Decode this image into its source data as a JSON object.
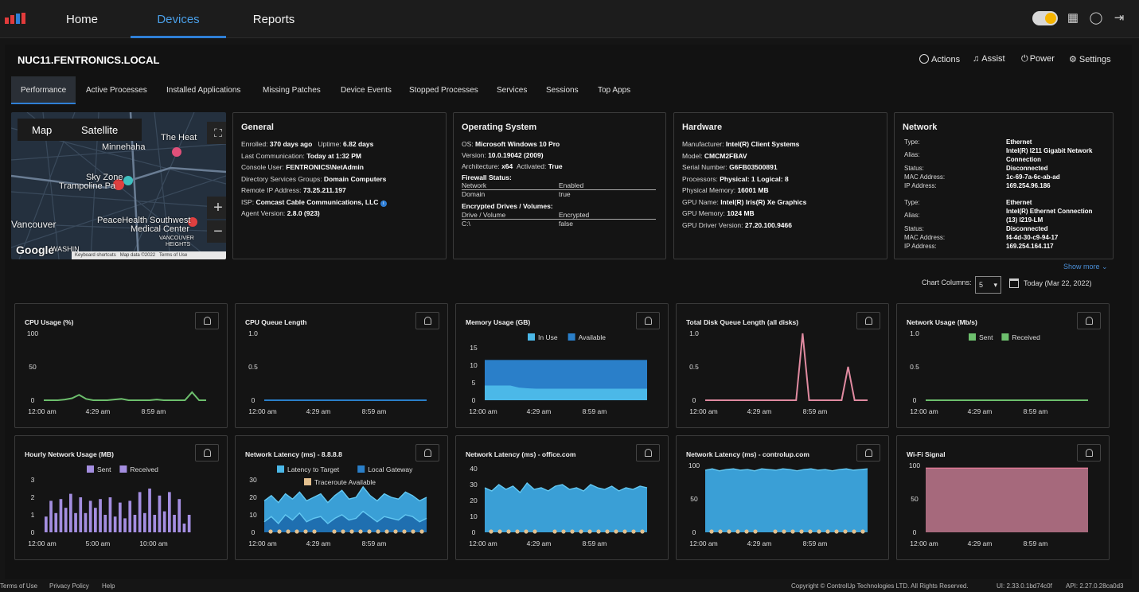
{
  "nav": {
    "home": "Home",
    "devices": "Devices",
    "reports": "Reports"
  },
  "device": {
    "name": "NUC11.FENTRONICS.LOCAL"
  },
  "actions": {
    "actions": "Actions",
    "assist": "Assist",
    "power": "Power",
    "settings": "Settings"
  },
  "tabs": [
    "Performance",
    "Active Processes",
    "Installed Applications",
    "Missing Patches",
    "Device Events",
    "Stopped Processes",
    "Services",
    "Sessions",
    "Top Apps"
  ],
  "map": {
    "map": "Map",
    "satellite": "Satellite",
    "labels": [
      "Minnehaha",
      "The Heat",
      "Sky Zone",
      "Trampoline Pa",
      "Vancouver",
      "PeaceHealth Southwest",
      "Medical Center",
      "VANCOUVER",
      "HEIGHTS",
      "Google",
      "WASHIN"
    ],
    "footer": "Keyboard shortcuts   Map data ©2022   Terms of Use"
  },
  "general": {
    "title": "General",
    "lines": [
      [
        "Enrolled: ",
        "370 days ago",
        "   Uptime: ",
        "6.82 days"
      ],
      [
        "Last Communication: ",
        "Today at 1:32 PM",
        "",
        ""
      ],
      [
        "Console User: ",
        "FENTRONICS\\NetAdmin",
        "",
        ""
      ],
      [
        "Directory Services Groups: ",
        "Domain Computers",
        "",
        ""
      ],
      [
        "Remote IP Address: ",
        "73.25.211.197",
        "",
        ""
      ],
      [
        "ISP: ",
        "Comcast Cable Communications, LLC",
        "",
        ""
      ],
      [
        "Agent Version: ",
        "2.8.0 (923)",
        "",
        ""
      ]
    ]
  },
  "os": {
    "title": "Operating System",
    "os_label": "OS: ",
    "os": "Microsoft Windows 10 Pro",
    "version_label": "Version: ",
    "version": "10.0.19042 (2009)",
    "arch_label": "Architecture: ",
    "arch": "x64",
    "activated_label": "Activated: ",
    "activated": "True",
    "firewall_title": "Firewall Status:",
    "fw_head": [
      "Network",
      "Enabled"
    ],
    "fw_row": [
      "Domain",
      "true"
    ],
    "drives_title": "Encrypted Drives / Volumes:",
    "dr_head": [
      "Drive / Volume",
      "Encrypted"
    ],
    "dr_row": [
      "C:\\",
      "false"
    ]
  },
  "hardware": {
    "title": "Hardware",
    "lines": [
      [
        "Manufacturer: ",
        "Intel(R) Client Systems"
      ],
      [
        "Model: ",
        "CMCM2FBAV"
      ],
      [
        "Serial Number: ",
        "G6FB03500891"
      ],
      [
        "Processors: ",
        "Physical: 1  Logical: 8"
      ],
      [
        "Physical Memory: ",
        "16001 MB"
      ],
      [
        "GPU Name: ",
        "Intel(R) Iris(R) Xe Graphics"
      ],
      [
        "GPU Memory: ",
        "1024 MB"
      ],
      [
        "GPU Driver Version: ",
        "27.20.100.9466"
      ]
    ]
  },
  "network": {
    "title": "Network",
    "adapters": [
      {
        "type": "Ethernet",
        "alias1": "Intel(R) I211 Gigabit Network",
        "alias2": "Connection",
        "status": "Disconnected",
        "mac": "1c-69-7a-6c-ab-ad",
        "ip": "169.254.96.186"
      },
      {
        "type": "Ethernet",
        "alias1": "Intel(R) Ethernet Connection",
        "alias2": "(13) I219-LM",
        "status": "Disconnected",
        "mac": "f4-4d-30-c9-94-17",
        "ip": "169.254.164.117"
      }
    ],
    "labels": {
      "type": "Type:",
      "alias": "Alias:",
      "status": "Status:",
      "mac": "MAC Address:",
      "ip": "IP Address:"
    },
    "show_more": "Show more"
  },
  "chart_controls": {
    "label": "Chart Columns:",
    "value": "5",
    "date": "Today (Mar 22, 2022)"
  },
  "footer": {
    "terms": "Terms of Use",
    "privacy": "Privacy Policy",
    "help": "Help",
    "copyright": "Copyright © ControlUp Technologies LTD. All Rights Reserved.",
    "ui": "UI: 2.33.0.1bd74c0f",
    "api": "API: 2.27.0.28ca0d3"
  },
  "colors": {
    "accent": "#2f7fd6",
    "green": "#6dbf6d",
    "blue": "#2a7fc9",
    "lightblue": "#4bb8e8",
    "pink": "#e08aa0",
    "purple": "#a48ee0",
    "tan": "#e3c08f",
    "wifi": "#c0788e"
  },
  "chart_data": [
    {
      "type": "line",
      "title": "CPU Usage (%)",
      "x_ticks": [
        "12:00 am",
        "4:29 am",
        "8:59 am"
      ],
      "y_ticks": [
        "100",
        "50",
        "0"
      ],
      "ylim": [
        0,
        100
      ],
      "series": [
        {
          "values": [
            0,
            0,
            0,
            1,
            3,
            8,
            2,
            0,
            0,
            0,
            1,
            2,
            0,
            0,
            0,
            0,
            1,
            0,
            0,
            0,
            0,
            12,
            0,
            0
          ]
        }
      ]
    },
    {
      "type": "line",
      "title": "CPU Queue Length",
      "x_ticks": [
        "12:00 am",
        "4:29 am",
        "8:59 am"
      ],
      "y_ticks": [
        "1.0",
        "0.5",
        "0"
      ],
      "ylim": [
        0,
        1
      ],
      "series": [
        {
          "values": [
            0,
            0,
            0,
            0,
            0,
            0,
            0,
            0,
            0,
            0,
            0,
            0,
            0,
            0,
            0,
            0,
            0,
            0,
            0,
            0,
            0,
            0,
            0,
            0
          ]
        }
      ]
    },
    {
      "type": "area",
      "title": "Memory Usage (GB)",
      "x_ticks": [
        "12:00 am",
        "4:29 am",
        "8:59 am"
      ],
      "y_ticks": [
        "15",
        "10",
        "5",
        "0"
      ],
      "ylim": [
        0,
        15
      ],
      "legend": [
        "In Use",
        "Available"
      ],
      "series": [
        {
          "name": "In Use",
          "values": [
            4.2,
            4.2,
            4.2,
            4.2,
            3.6,
            3.4,
            3.3,
            3.3,
            3.3,
            3.3,
            3.3,
            3.3,
            3.3,
            3.3,
            3.3,
            3.3,
            3.3,
            3.3,
            3.3,
            3.3
          ]
        },
        {
          "name": "Available",
          "values": [
            7.3,
            7.3,
            7.3,
            7.3,
            7.9,
            8.1,
            8.2,
            8.2,
            8.2,
            8.2,
            8.2,
            8.2,
            8.2,
            8.2,
            8.2,
            8.2,
            8.2,
            8.2,
            8.2,
            8.2
          ]
        }
      ]
    },
    {
      "type": "line",
      "title": "Total Disk Queue Length (all disks)",
      "x_ticks": [
        "12:00 am",
        "4:29 am",
        "8:59 am"
      ],
      "y_ticks": [
        "1.0",
        "0.5",
        "0"
      ],
      "ylim": [
        0,
        1
      ],
      "series": [
        {
          "values": [
            0,
            0,
            0,
            0,
            0,
            0,
            0,
            0,
            0,
            0,
            0,
            0,
            0,
            0,
            0,
            1.0,
            0,
            0,
            0,
            0,
            0,
            0,
            0.5,
            0,
            0,
            0
          ]
        }
      ]
    },
    {
      "type": "line",
      "title": "Network Usage (Mb/s)",
      "x_ticks": [
        "12:00 am",
        "4:29 am",
        "8:59 am"
      ],
      "y_ticks": [
        "1.0",
        "0.5",
        "0"
      ],
      "ylim": [
        0,
        1
      ],
      "legend": [
        "Sent",
        "Received"
      ],
      "series": [
        {
          "name": "Sent",
          "values": [
            0,
            0,
            0,
            0,
            0,
            0,
            0,
            0,
            0,
            0,
            0,
            0,
            0,
            0,
            0,
            0,
            0,
            0,
            0,
            0,
            0,
            0,
            0,
            0
          ]
        },
        {
          "name": "Received",
          "values": [
            0,
            0,
            0,
            0,
            0,
            0,
            0,
            0,
            0,
            0,
            0,
            0,
            0,
            0,
            0,
            0,
            0,
            0,
            0,
            0,
            0,
            0,
            0,
            0
          ]
        }
      ]
    },
    {
      "type": "bar",
      "title": "Hourly Network Usage (MB)",
      "x_ticks": [
        "12:00 am",
        "5:00 am",
        "10:00 am"
      ],
      "y_ticks": [
        "3",
        "2",
        "1",
        "0"
      ],
      "ylim": [
        0,
        3
      ],
      "legend": [
        "Sent",
        "Received"
      ],
      "values": [
        0.9,
        1.8,
        1.1,
        1.9,
        1.4,
        2.2,
        1.1,
        2.0,
        1.1,
        1.8,
        1.4,
        1.9,
        1.0,
        2.0,
        0.9,
        1.7,
        0.8,
        1.8,
        1.0,
        2.3,
        1.1,
        2.5,
        1.0,
        2.1,
        1.2,
        2.3,
        1.0,
        1.9,
        0.5,
        1.0
      ]
    },
    {
      "type": "area",
      "title": "Network Latency (ms) - 8.8.8.8",
      "x_ticks": [
        "12:00 am",
        "4:29 am",
        "8:59 am"
      ],
      "y_ticks": [
        "30",
        "20",
        "10",
        "0"
      ],
      "ylim": [
        0,
        30
      ],
      "legend": [
        "Latency to Target",
        "Local Gateway",
        "Traceroute Available"
      ],
      "series": [
        {
          "name": "Latency to Target",
          "values": [
            18,
            21,
            17,
            22,
            19,
            23,
            18,
            20,
            22,
            17,
            21,
            24,
            19,
            20,
            26,
            21,
            18,
            22,
            20,
            19,
            23,
            21,
            18,
            20
          ]
        },
        {
          "name": "Local Gateway",
          "values": [
            6,
            9,
            5,
            10,
            7,
            11,
            6,
            8,
            9,
            5,
            8,
            10,
            7,
            8,
            12,
            9,
            6,
            9,
            8,
            7,
            10,
            9,
            6,
            8
          ]
        }
      ]
    },
    {
      "type": "area",
      "title": "Network Latency (ms) - office.com",
      "x_ticks": [
        "12:00 am",
        "4:29 am",
        "8:59 am"
      ],
      "y_ticks": [
        "40",
        "30",
        "20",
        "10",
        "0"
      ],
      "ylim": [
        0,
        40
      ],
      "series": [
        {
          "values": [
            28,
            26,
            30,
            27,
            29,
            25,
            31,
            27,
            28,
            26,
            29,
            30,
            27,
            28,
            26,
            30,
            28,
            27,
            29,
            26,
            28,
            27,
            29,
            28
          ]
        }
      ]
    },
    {
      "type": "area",
      "title": "Network Latency (ms) - controlup.com",
      "x_ticks": [
        "12:00 am",
        "4:29 am",
        "8:59 am"
      ],
      "y_ticks": [
        "100",
        "50",
        "0"
      ],
      "ylim": [
        0,
        100
      ],
      "series": [
        {
          "values": [
            93,
            95,
            92,
            94,
            95,
            93,
            94,
            92,
            95,
            94,
            93,
            95,
            94,
            92,
            94,
            95,
            93,
            94,
            92,
            94,
            95,
            93,
            94,
            95
          ]
        }
      ]
    },
    {
      "type": "area",
      "title": "Wi-Fi Signal",
      "x_ticks": [
        "12:00 am",
        "4:29 am",
        "8:59 am"
      ],
      "y_ticks": [
        "100",
        "50",
        "0"
      ],
      "ylim": [
        0,
        100
      ],
      "series": [
        {
          "values": [
            96,
            96,
            96,
            96,
            96,
            96,
            96,
            96,
            96,
            96,
            96,
            96,
            96,
            96,
            96,
            96,
            96,
            96,
            96,
            96
          ]
        }
      ]
    }
  ]
}
